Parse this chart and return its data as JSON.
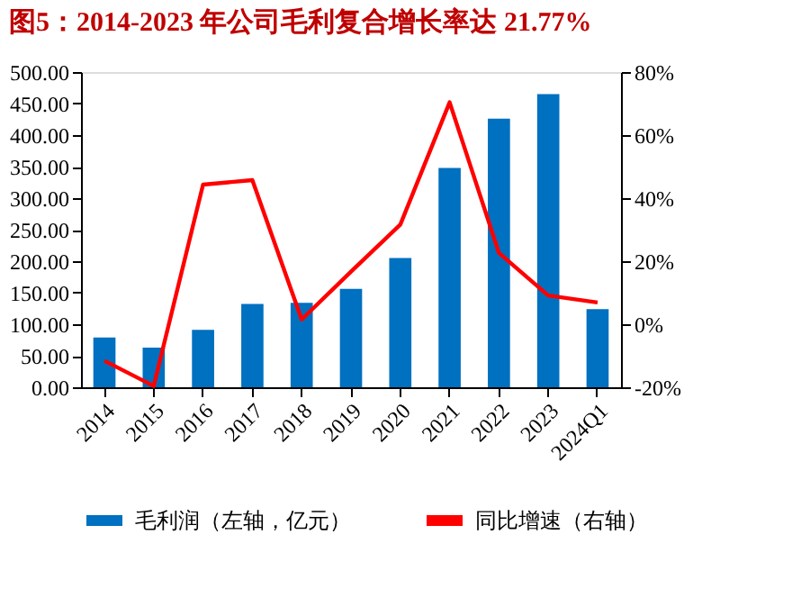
{
  "chart_data": {
    "type": "bar",
    "title": "图5：2014-2023 年公司毛利复合增长率达 21.77%",
    "categories": [
      "2014",
      "2015",
      "2016",
      "2017",
      "2018",
      "2019",
      "2020",
      "2021",
      "2022",
      "2023",
      "2024Q1"
    ],
    "series": [
      {
        "name": "毛利润（左轴，亿元）",
        "color": "#0070c0",
        "values": [
          79,
          63,
          91,
          132,
          134,
          156,
          205,
          348,
          426,
          465,
          124
        ]
      },
      {
        "name": "同比增速（右轴）",
        "type": "line",
        "axis": "y2",
        "color": "#ff0000",
        "values": [
          -11.6,
          -19.6,
          44.3,
          45.7,
          1.5,
          16.7,
          31.6,
          70.4,
          22.6,
          9.1,
          6.9
        ]
      }
    ],
    "ylim": [
      0,
      500
    ],
    "yticks": [
      {
        "value": 0,
        "label": "0.00"
      },
      {
        "value": 50,
        "label": "50.00"
      },
      {
        "value": 100,
        "label": "100.00"
      },
      {
        "value": 150,
        "label": "150.00"
      },
      {
        "value": 200,
        "label": "200.00"
      },
      {
        "value": 250,
        "label": "250.00"
      },
      {
        "value": 300,
        "label": "300.00"
      },
      {
        "value": 350,
        "label": "350.00"
      },
      {
        "value": 400,
        "label": "400.00"
      },
      {
        "value": 450,
        "label": "450.00"
      },
      {
        "value": 500,
        "label": "500.00"
      }
    ],
    "y2lim": [
      -20,
      80
    ],
    "y2ticks": [
      {
        "value": -20,
        "label": "-20%"
      },
      {
        "value": 0,
        "label": "0%"
      },
      {
        "value": 20,
        "label": "20%"
      },
      {
        "value": 40,
        "label": "40%"
      },
      {
        "value": 60,
        "label": "60%"
      },
      {
        "value": 80,
        "label": "80%"
      }
    ],
    "legend": "bottom",
    "grid": false,
    "marker": "none",
    "line_style": "solid"
  }
}
